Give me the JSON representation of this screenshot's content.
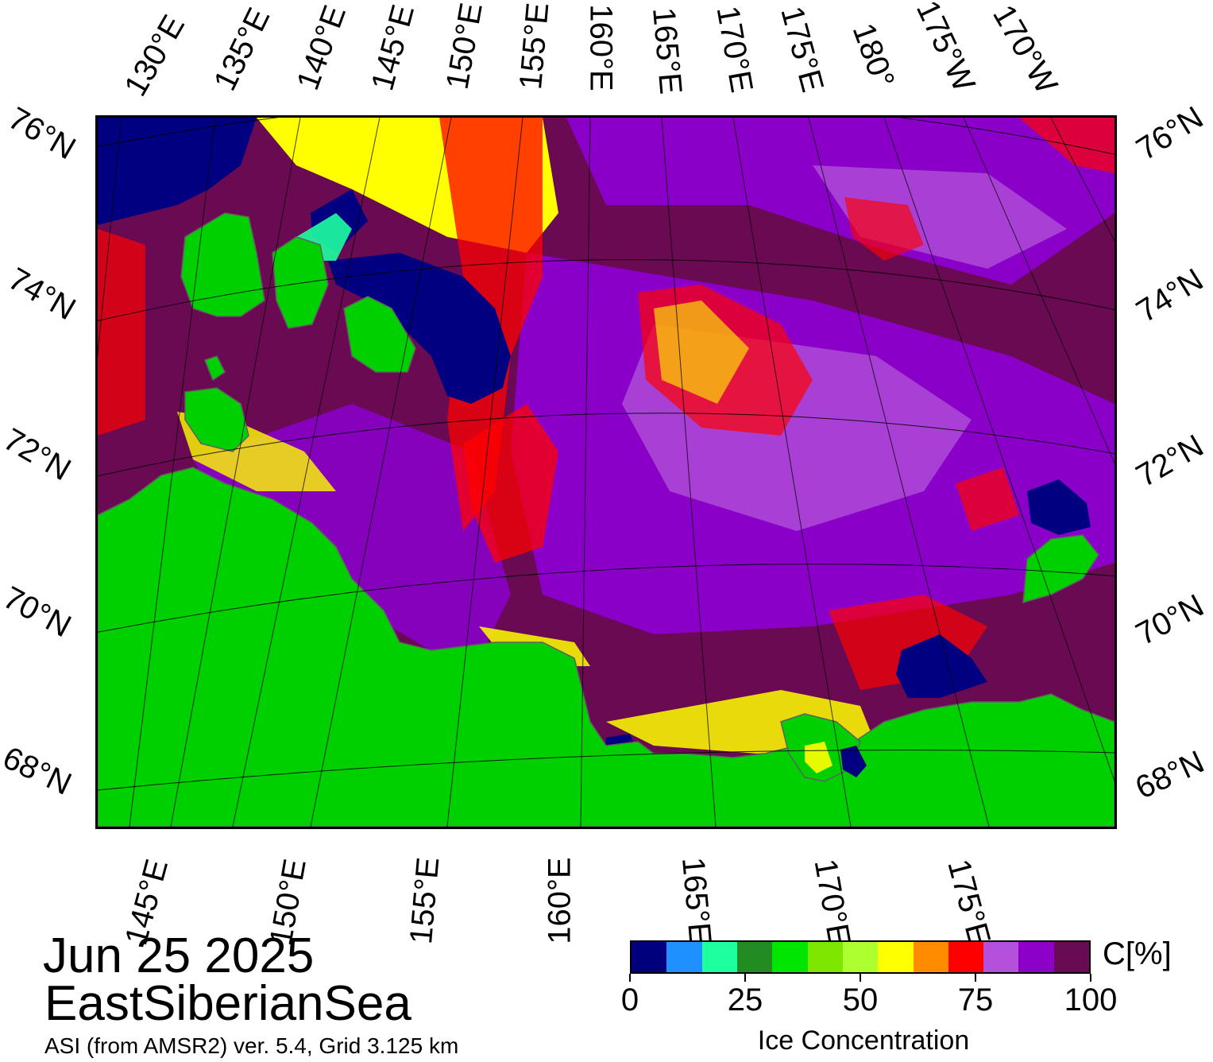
{
  "map": {
    "date": "Jun 25 2025",
    "region": "EastSiberianSea",
    "product": "ASI (from AMSR2) ver. 5.4,  Grid 3.125 km",
    "colors": {
      "land": "#00d000",
      "ice_high": "#6a0a52",
      "ice_mid": "#8a00c8",
      "ice_low": "#b050d8",
      "open_water": "#000080",
      "coast": "#606060"
    },
    "top_longitude_labels": [
      "130°E",
      "135°E",
      "140°E",
      "145°E",
      "150°E",
      "155°E",
      "160°E",
      "165°E",
      "170°E",
      "175°E",
      "180°",
      "175°W",
      "170°W"
    ],
    "bottom_longitude_labels": [
      "145°E",
      "150°E",
      "155°E",
      "160°E",
      "165°E",
      "170°E",
      "175°E"
    ],
    "left_latitude_labels": [
      "76°N",
      "74°N",
      "72°N",
      "70°N",
      "68°N"
    ],
    "right_latitude_labels": [
      "76°N",
      "74°N",
      "72°N",
      "70°N",
      "68°N"
    ]
  },
  "colorbar": {
    "title": "Ice Concentration",
    "unit": "C[%]",
    "range": [
      0,
      100
    ],
    "tick_labels": [
      "0",
      "25",
      "50",
      "75",
      "100"
    ],
    "colors": [
      "#00007f",
      "#1e90ff",
      "#1effa0",
      "#228b22",
      "#00e600",
      "#7fe600",
      "#adff2f",
      "#ffff00",
      "#ff8c00",
      "#ff0000",
      "#b450dc",
      "#8c00c8",
      "#690a55"
    ]
  }
}
